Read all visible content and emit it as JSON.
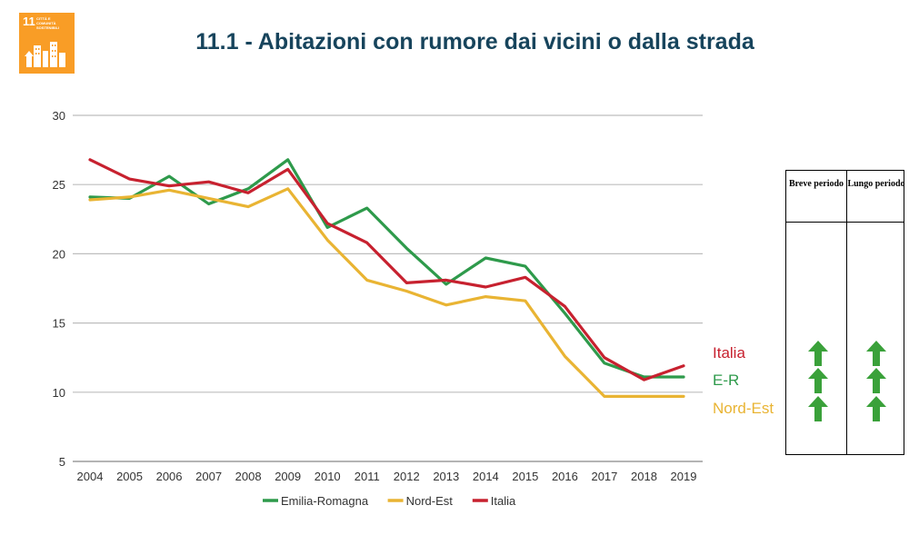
{
  "header": {
    "title": "11.1 - Abitazioni con rumore dai vicini o dalla strada",
    "logo": {
      "number": "11",
      "text": "CITTÀ E COMUNITÀ SOSTENIBILI",
      "color": "#f99d26"
    }
  },
  "chart_data": {
    "type": "line",
    "title": "",
    "xlabel": "",
    "ylabel": "",
    "x": [
      "2004",
      "2005",
      "2006",
      "2007",
      "2008",
      "2009",
      "2010",
      "2011",
      "2012",
      "2013",
      "2014",
      "2015",
      "2016",
      "2017",
      "2018",
      "2019"
    ],
    "ylim": [
      5,
      30
    ],
    "yticks": [
      5,
      10,
      15,
      20,
      25,
      30
    ],
    "grid": true,
    "legend_position": "bottom",
    "series": [
      {
        "name": "Emilia-Romagna",
        "color": "#2e9a4b",
        "values": [
          24.1,
          24.0,
          25.6,
          23.6,
          24.7,
          26.8,
          21.9,
          23.3,
          20.4,
          17.8,
          19.7,
          19.1,
          15.7,
          12.1,
          11.1,
          11.1
        ]
      },
      {
        "name": "Nord-Est",
        "color": "#e9b433",
        "values": [
          23.9,
          24.1,
          24.6,
          24.0,
          23.4,
          24.7,
          21.0,
          18.1,
          17.3,
          16.3,
          16.9,
          16.6,
          12.6,
          9.7,
          9.7,
          9.7
        ]
      },
      {
        "name": "Italia",
        "color": "#c7212f",
        "values": [
          26.8,
          25.4,
          24.9,
          25.2,
          24.4,
          26.1,
          22.2,
          20.8,
          17.9,
          18.1,
          17.6,
          18.3,
          16.2,
          12.5,
          10.9,
          11.9
        ]
      }
    ]
  },
  "trend_table": {
    "headers": [
      "Breve periodo",
      "Lungo periodo"
    ],
    "rows": [
      {
        "label": "Italia",
        "color": "#c7212f",
        "short": "up-arrow-icon",
        "long": "up-arrow-icon"
      },
      {
        "label": "E-R",
        "color": "#2e9a4b",
        "short": "up-arrow-icon",
        "long": "up-arrow-icon"
      },
      {
        "label": "Nord-Est",
        "color": "#e9b433",
        "short": "up-arrow-icon",
        "long": "up-arrow-icon"
      }
    ],
    "arrow_color": "#3aa13a"
  }
}
